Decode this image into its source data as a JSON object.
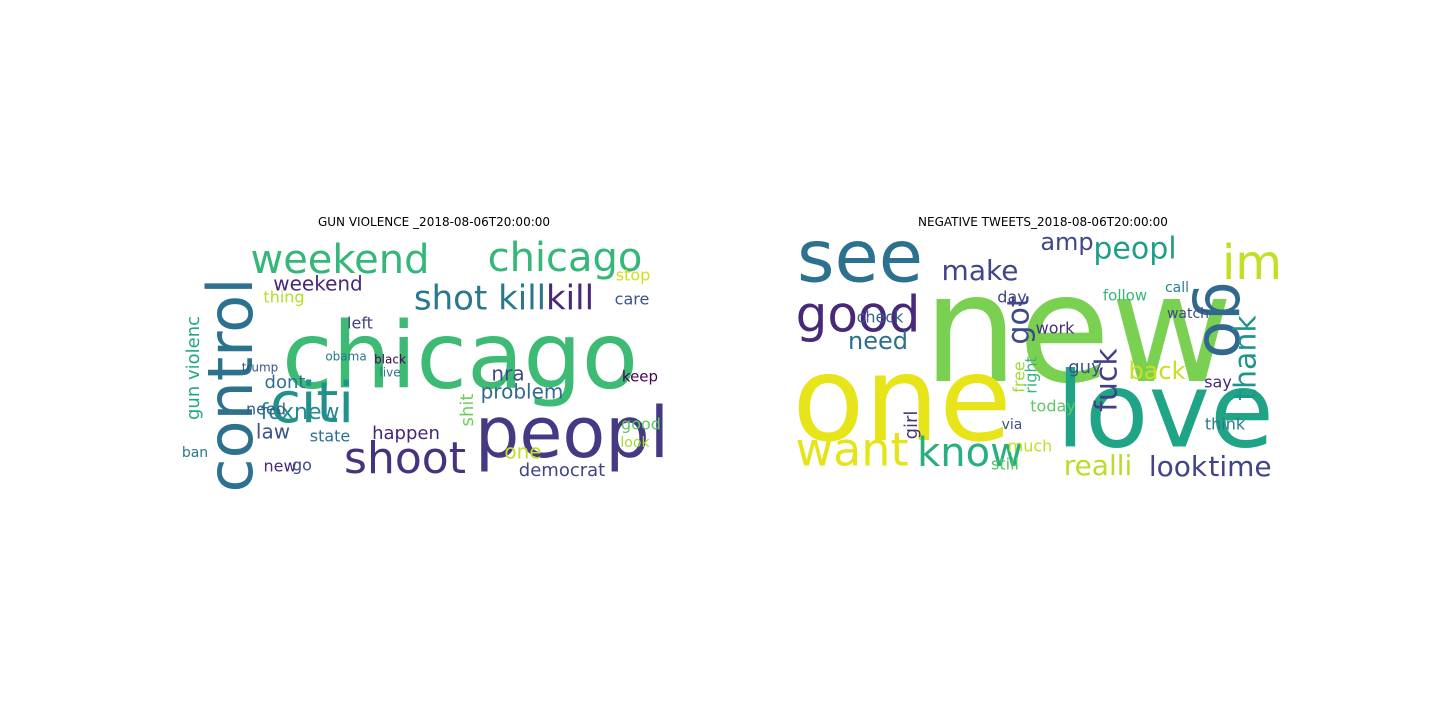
{
  "chart_data": [
    {
      "type": "wordcloud",
      "title": "GUN VIOLENCE _2018-08-06T20:00:00",
      "words": [
        "chicago",
        "control",
        "weekend",
        "chicago",
        "peopl",
        "citi",
        "shoot",
        "shot kill",
        "kill",
        "weekend",
        "nra",
        "problem",
        "shit",
        "one",
        "democrat",
        "foxnew",
        "law",
        "happen",
        "state",
        "dont",
        "need",
        "gun violenc",
        "stop",
        "care",
        "keep",
        "look",
        "left",
        "thing",
        "ban",
        "new",
        "go",
        "good",
        "obama",
        "trump",
        "black",
        "live"
      ],
      "colors": [
        "#3dbb74",
        "#2c728e",
        "#35b779",
        "#35b779",
        "#443983",
        "#21918c",
        "#46327e",
        "#2a788e",
        "#482878",
        "#482878",
        "#3e4a89",
        "#31688e",
        "#6ece58",
        "#bddf26",
        "#414487",
        "#238a8d",
        "#3b528b",
        "#482475",
        "#2d708e",
        "#2c728e",
        "#365c8d",
        "#22a785",
        "#d0e11c",
        "#3b528b",
        "#440154",
        "#a5db36",
        "#414487",
        "#b5de2b",
        "#2a788e",
        "#482878",
        "#3e4989",
        "#5ec962",
        "#2a788e",
        "#3b528b",
        "#440154",
        "#2c728e"
      ]
    },
    {
      "type": "wordcloud",
      "title": "NEGATIVE TWEETS_2018-08-06T20:00:00",
      "words": [
        "new",
        "one",
        "love",
        "see",
        "good",
        "go",
        "im",
        "want",
        "know",
        "make",
        "amp",
        "peopl",
        "thank",
        "fuck",
        "realli",
        "look",
        "time",
        "back",
        "need",
        "got",
        "work",
        "check",
        "watch",
        "call",
        "guy",
        "day",
        "today",
        "follow",
        "free",
        "right",
        "girl",
        "much",
        "still",
        "via",
        "think",
        "say"
      ],
      "colors": [
        "#7ad151",
        "#e7e419",
        "#20a486",
        "#2c728e",
        "#482878",
        "#31688e",
        "#c2df23",
        "#e5e419",
        "#29af7f",
        "#404688",
        "#3f4889",
        "#1f9e89",
        "#1f948c",
        "#433e85",
        "#b8de29",
        "#414487",
        "#414487",
        "#c8e020",
        "#2d708e",
        "#3e4989",
        "#46307e",
        "#34618d",
        "#3e4989",
        "#25838e",
        "#3b528b",
        "#414487",
        "#5ec962",
        "#35b779",
        "#a0da39",
        "#35b779",
        "#46327e",
        "#c2df23",
        "#52c569",
        "#3b528b",
        "#2a788e",
        "#482878"
      ]
    }
  ]
}
